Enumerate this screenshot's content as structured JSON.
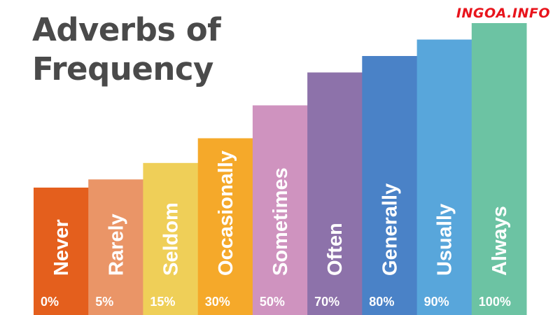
{
  "title_lines": [
    "Adverbs of",
    "Frequency"
  ],
  "watermark": "INGOA.INFO",
  "chart_data": {
    "type": "bar",
    "categories": [
      "Never",
      "Rarely",
      "Seldom",
      "Occasionally",
      "Sometimes",
      "Often",
      "Generally",
      "Usually",
      "Always"
    ],
    "values": [
      0,
      5,
      15,
      30,
      50,
      70,
      80,
      90,
      100
    ],
    "value_labels": [
      "0%",
      "5%",
      "15%",
      "30%",
      "50%",
      "70%",
      "80%",
      "90%",
      "100%"
    ],
    "colors": [
      "#e45f1d",
      "#ea9567",
      "#efcf58",
      "#f5a92a",
      "#cf93bf",
      "#8d72aa",
      "#4a82c7",
      "#58a6db",
      "#6cc3a3"
    ],
    "title": "Adverbs of Frequency"
  }
}
